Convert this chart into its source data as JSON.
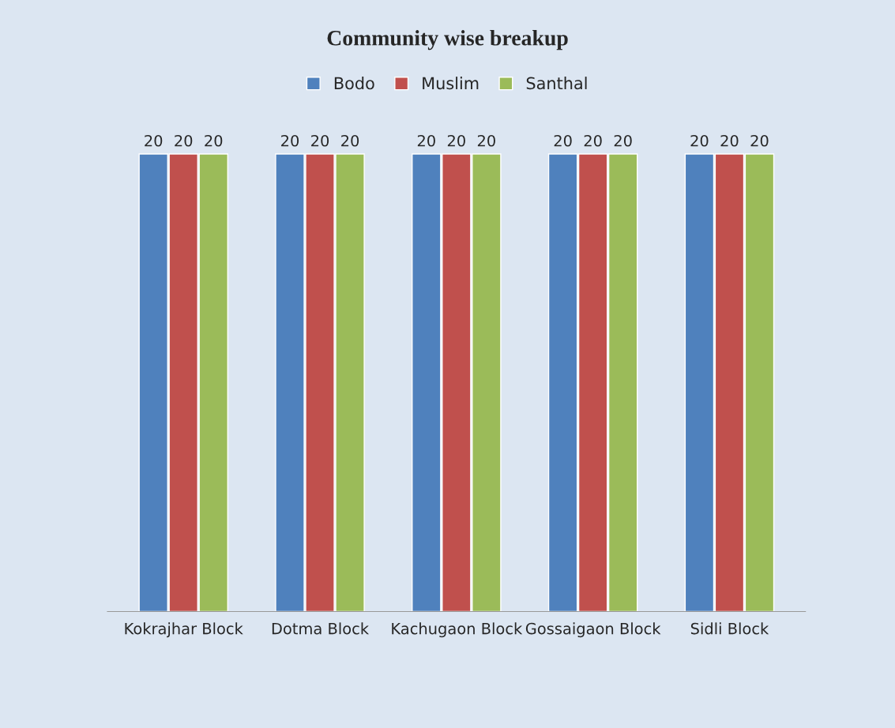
{
  "chart_data": {
    "type": "bar",
    "title": "Community wise breakup",
    "categories": [
      "Kokrajhar Block",
      "Dotma Block",
      "Kachugaon Block",
      "Gossaigaon Block",
      "Sidli Block"
    ],
    "series": [
      {
        "name": "Bodo",
        "color": "#4f81bd",
        "values": [
          20,
          20,
          20,
          20,
          20
        ]
      },
      {
        "name": "Muslim",
        "color": "#c0504d",
        "values": [
          20,
          20,
          20,
          20,
          20
        ]
      },
      {
        "name": "Santhal",
        "color": "#9bbb59",
        "values": [
          20,
          20,
          20,
          20,
          20
        ]
      }
    ],
    "data_labels": true,
    "legend": "top",
    "grid": false
  }
}
